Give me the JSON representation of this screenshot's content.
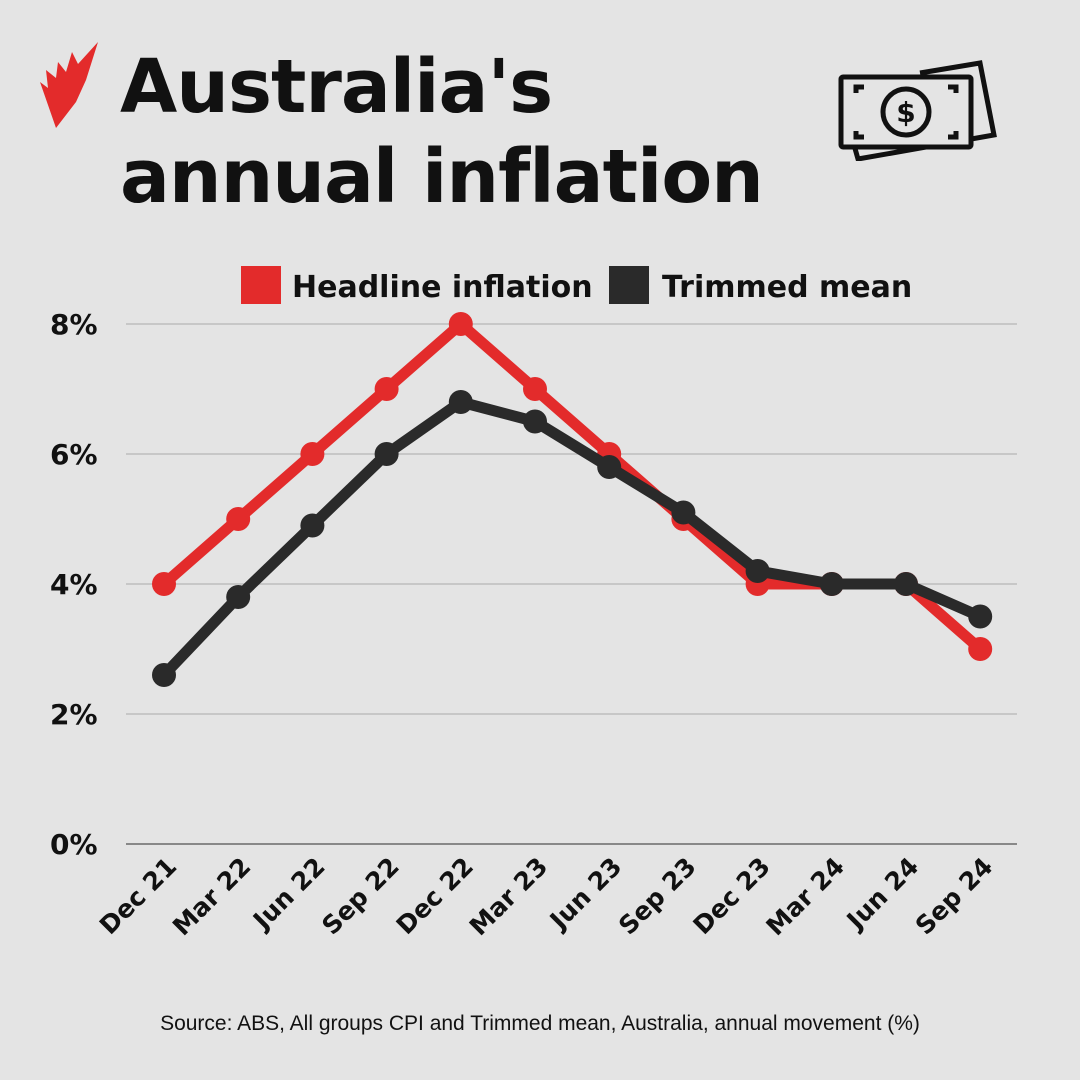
{
  "header": {
    "title": "Australia's annual inflation",
    "logo": "sbs-logo",
    "icon": "money-bill-icon"
  },
  "colors": {
    "headline": "#e32b2b",
    "trimmed": "#2a2a2a",
    "background": "#e4e4e4",
    "grid": "#bdbdbd"
  },
  "chart_data": {
    "type": "line",
    "title": "Australia's annual inflation",
    "xlabel": "",
    "ylabel": "",
    "categories": [
      "Dec 21",
      "Mar 22",
      "Jun 22",
      "Sep 22",
      "Dec 22",
      "Mar 23",
      "Jun 23",
      "Sep 23",
      "Dec 23",
      "Mar 24",
      "Jun 24",
      "Sep 24"
    ],
    "yticks": [
      "0%",
      "2%",
      "4%",
      "6%",
      "8%"
    ],
    "ylim": [
      0,
      8
    ],
    "grid": true,
    "legend": "top",
    "series": [
      {
        "name": "Headline inflation",
        "color": "#e32b2b",
        "values": [
          4.0,
          5.0,
          6.0,
          7.0,
          8.0,
          7.0,
          6.0,
          5.0,
          4.0,
          4.0,
          4.0,
          3.0
        ]
      },
      {
        "name": "Trimmed mean",
        "color": "#2a2a2a",
        "values": [
          2.6,
          3.8,
          4.9,
          6.0,
          6.8,
          6.5,
          5.8,
          5.1,
          4.2,
          4.0,
          4.0,
          3.5
        ]
      }
    ]
  },
  "footer": {
    "source": "Source: ABS, All groups CPI and Trimmed mean, Australia, annual movement (%)"
  }
}
